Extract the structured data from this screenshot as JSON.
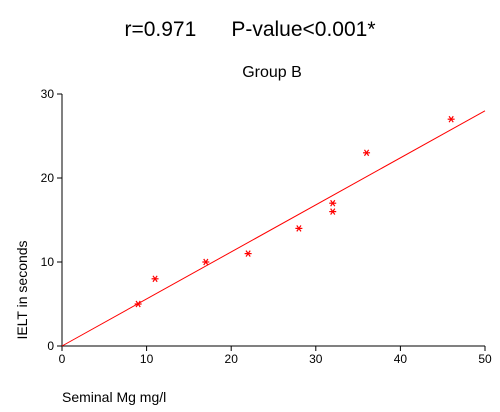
{
  "stats": {
    "r": "r=0.971",
    "p": "P-value<0.001*"
  },
  "chart_data": {
    "type": "scatter",
    "title": "Group B",
    "xlabel": "Seminal Mg mg/l",
    "ylabel": "IELT in seconds",
    "xlim": [
      0,
      50
    ],
    "ylim": [
      0,
      30
    ],
    "xticks": [
      0,
      10,
      20,
      30,
      40,
      50
    ],
    "yticks": [
      0,
      10,
      20,
      30
    ],
    "grid": false,
    "marker": "asterisk",
    "series": [
      {
        "points": [
          {
            "x": 9,
            "y": 5
          },
          {
            "x": 11,
            "y": 8
          },
          {
            "x": 17,
            "y": 10
          },
          {
            "x": 22,
            "y": 11
          },
          {
            "x": 28,
            "y": 14
          },
          {
            "x": 32,
            "y": 16
          },
          {
            "x": 32,
            "y": 17
          },
          {
            "x": 36,
            "y": 23
          },
          {
            "x": 46,
            "y": 27
          }
        ],
        "color": "#ff0000"
      }
    ],
    "fit_line": {
      "from": {
        "x": 0,
        "y": 0
      },
      "to": {
        "x": 50,
        "y": 28
      },
      "color": "#ff0000"
    }
  }
}
